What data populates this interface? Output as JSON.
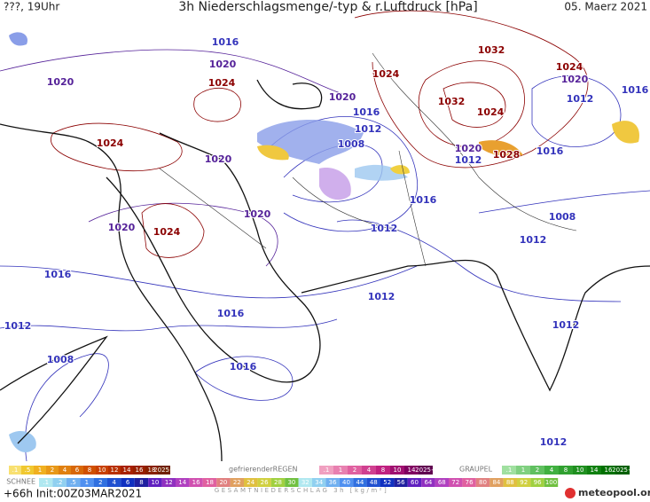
{
  "header": {
    "time": "???, 19Uhr",
    "title": "3h Niederschlagsmenge/-typ & r.Luftdruck [hPa]",
    "date": "05. Maerz 2021"
  },
  "isobar_labels": [
    {
      "text": "1016",
      "color": "#3333bb"
    },
    {
      "text": "1020",
      "color": "#552299"
    },
    {
      "text": "1020",
      "color": "#552299"
    },
    {
      "text": "1024",
      "color": "#8b0000"
    },
    {
      "text": "1024",
      "color": "#8b0000"
    },
    {
      "text": "1020",
      "color": "#552299"
    },
    {
      "text": "1020",
      "color": "#552299"
    },
    {
      "text": "1024",
      "color": "#8b0000"
    },
    {
      "text": "1020",
      "color": "#552299"
    },
    {
      "text": "1024",
      "color": "#8b0000"
    },
    {
      "text": "1020",
      "color": "#552299"
    },
    {
      "text": "1016",
      "color": "#3333bb"
    },
    {
      "text": "1012",
      "color": "#3333bb"
    },
    {
      "text": "1008",
      "color": "#3333bb"
    },
    {
      "text": "1032",
      "color": "#8b0000"
    },
    {
      "text": "1032",
      "color": "#8b0000"
    },
    {
      "text": "1024",
      "color": "#8b0000"
    },
    {
      "text": "1024",
      "color": "#8b0000"
    },
    {
      "text": "1020",
      "color": "#552299"
    },
    {
      "text": "1016",
      "color": "#3333bb"
    },
    {
      "text": "1012",
      "color": "#3333bb"
    },
    {
      "text": "1020",
      "color": "#552299"
    },
    {
      "text": "1012",
      "color": "#3333bb"
    },
    {
      "text": "1028",
      "color": "#8b0000"
    },
    {
      "text": "1016",
      "color": "#3333bb"
    },
    {
      "text": "1016",
      "color": "#3333bb"
    },
    {
      "text": "1008",
      "color": "#3333bb"
    },
    {
      "text": "1012",
      "color": "#3333bb"
    },
    {
      "text": "1012",
      "color": "#3333bb"
    },
    {
      "text": "1016",
      "color": "#3333bb"
    },
    {
      "text": "1012",
      "color": "#3333bb"
    },
    {
      "text": "1016",
      "color": "#3333bb"
    },
    {
      "text": "1012",
      "color": "#3333bb"
    },
    {
      "text": "1012",
      "color": "#3333bb"
    },
    {
      "text": "1008",
      "color": "#3333bb"
    },
    {
      "text": "1016",
      "color": "#3333bb"
    },
    {
      "text": "1012",
      "color": "#3333bb"
    }
  ],
  "legend": {
    "rain": {
      "steps": [
        ".1",
        ".5",
        "1",
        "2",
        "4",
        "6",
        "8",
        "10",
        "12",
        "14",
        "16",
        "18",
        "2025+"
      ]
    },
    "freezing_rain": {
      "label": "gefrierenderREGEN",
      "steps": [
        ".1",
        "1",
        "2",
        "4",
        "8",
        "10",
        "14",
        "2025+"
      ]
    },
    "graupel": {
      "label": "GRAUPEL",
      "steps": [
        ".1",
        "1",
        "2",
        "4",
        "8",
        "10",
        "14",
        "16",
        "2025+"
      ]
    },
    "snow": {
      "label": "SCHNEE",
      "steps": [
        ".1",
        ".2",
        ".5",
        "1",
        "2",
        "4",
        "6",
        "8",
        "10",
        "12",
        "14",
        "16",
        "18",
        "20",
        "22",
        "24",
        "26",
        "28",
        "30",
        "32",
        "34",
        "36",
        "40",
        "44",
        "48",
        "52",
        "56",
        "60",
        "64",
        "68",
        "72",
        "76",
        "80",
        "84",
        "88",
        "92",
        "96",
        "100"
      ]
    },
    "total": {
      "label": "GESAMTNIEDERSCHLAG 3h [kg/m²]"
    }
  },
  "footer": {
    "run": "+66h Init:00Z03MAR2021",
    "brand": "meteopool.org"
  }
}
